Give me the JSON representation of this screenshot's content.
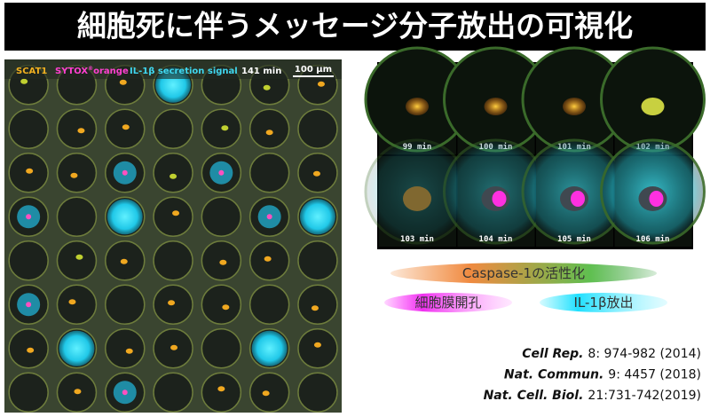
{
  "title": "細胞死に伴うメッセージ分子放出の可視化",
  "legend": {
    "scat1": "SCAT1",
    "sytox": "SYTOX",
    "registered": "®",
    "orange": "orange",
    "il1b": "IL-1β secretion signal",
    "time": "141 min",
    "scale": "100 μm"
  },
  "timelapse": [
    "99 min",
    "100 min",
    "101 min",
    "102 min",
    "103 min",
    "104 min",
    "105 min",
    "106 min"
  ],
  "labels": {
    "caspase": "Caspase-1の活性化",
    "pore": "細胞膜開孔",
    "release": "IL-1β放出"
  },
  "references": [
    {
      "journal": "Cell Rep.",
      "detail": "8: 974-982 (2014)"
    },
    {
      "journal": "Nat. Commun.",
      "detail": "9: 4457 (2018)"
    },
    {
      "journal": "Nat. Cell. Biol.",
      "detail": "21:731-742(2019)"
    }
  ]
}
